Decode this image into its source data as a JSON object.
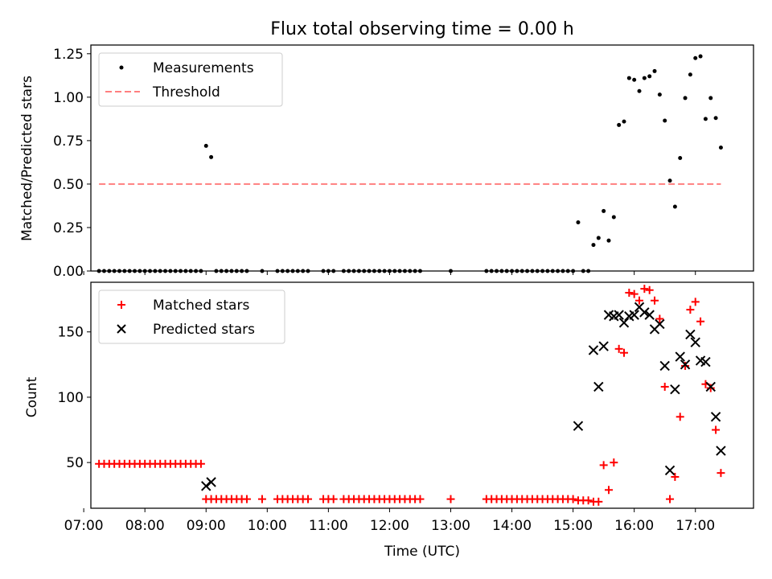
{
  "chart_data": [
    {
      "type": "scatter",
      "title": "Flux total observing time = 0.00 h",
      "xlabel": "",
      "ylabel": "Matched/Predicted stars",
      "xlim": [
        "07:07",
        "17:57"
      ],
      "ylim": [
        0,
        1.3
      ],
      "yticks": [
        0.0,
        0.25,
        0.5,
        0.75,
        1.0,
        1.25
      ],
      "ytick_labels": [
        "0.00",
        "0.25",
        "0.50",
        "0.75",
        "1.00",
        "1.25"
      ],
      "legend_position": "top-left",
      "grid": false,
      "series": [
        {
          "name": "Measurements",
          "marker": "dot",
          "color": "#000000",
          "points": [
            [
              "07:15",
              0
            ],
            [
              "07:20",
              0
            ],
            [
              "07:25",
              0
            ],
            [
              "07:30",
              0
            ],
            [
              "07:35",
              0
            ],
            [
              "07:40",
              0
            ],
            [
              "07:45",
              0
            ],
            [
              "07:50",
              0
            ],
            [
              "07:55",
              0
            ],
            [
              "08:00",
              0
            ],
            [
              "08:05",
              0
            ],
            [
              "08:10",
              0
            ],
            [
              "08:15",
              0
            ],
            [
              "08:20",
              0
            ],
            [
              "08:25",
              0
            ],
            [
              "08:30",
              0
            ],
            [
              "08:35",
              0
            ],
            [
              "08:40",
              0
            ],
            [
              "08:45",
              0
            ],
            [
              "08:50",
              0
            ],
            [
              "08:55",
              0
            ],
            [
              "09:00",
              0.72
            ],
            [
              "09:05",
              0.655
            ],
            [
              "09:10",
              0
            ],
            [
              "09:15",
              0
            ],
            [
              "09:20",
              0
            ],
            [
              "09:25",
              0
            ],
            [
              "09:30",
              0
            ],
            [
              "09:35",
              0
            ],
            [
              "09:40",
              0
            ],
            [
              "09:55",
              0
            ],
            [
              "10:10",
              0
            ],
            [
              "10:15",
              0
            ],
            [
              "10:20",
              0
            ],
            [
              "10:25",
              0
            ],
            [
              "10:30",
              0
            ],
            [
              "10:35",
              0
            ],
            [
              "10:40",
              0
            ],
            [
              "10:55",
              0
            ],
            [
              "11:00",
              0
            ],
            [
              "11:05",
              0
            ],
            [
              "11:15",
              0
            ],
            [
              "11:20",
              0
            ],
            [
              "11:25",
              0
            ],
            [
              "11:30",
              0
            ],
            [
              "11:35",
              0
            ],
            [
              "11:40",
              0
            ],
            [
              "11:45",
              0
            ],
            [
              "11:50",
              0
            ],
            [
              "11:55",
              0
            ],
            [
              "12:00",
              0
            ],
            [
              "12:05",
              0
            ],
            [
              "12:10",
              0
            ],
            [
              "12:15",
              0
            ],
            [
              "12:20",
              0
            ],
            [
              "12:25",
              0
            ],
            [
              "12:30",
              0
            ],
            [
              "13:00",
              0
            ],
            [
              "13:35",
              0
            ],
            [
              "13:40",
              0
            ],
            [
              "13:45",
              0
            ],
            [
              "13:50",
              0
            ],
            [
              "13:55",
              0
            ],
            [
              "14:00",
              0
            ],
            [
              "14:05",
              0
            ],
            [
              "14:10",
              0
            ],
            [
              "14:15",
              0
            ],
            [
              "14:20",
              0
            ],
            [
              "14:25",
              0
            ],
            [
              "14:30",
              0
            ],
            [
              "14:35",
              0
            ],
            [
              "14:40",
              0
            ],
            [
              "14:45",
              0
            ],
            [
              "14:50",
              0
            ],
            [
              "14:55",
              0
            ],
            [
              "15:00",
              0
            ],
            [
              "15:05",
              0.28
            ],
            [
              "15:10",
              0
            ],
            [
              "15:15",
              0
            ],
            [
              "15:20",
              0.15
            ],
            [
              "15:25",
              0.19
            ],
            [
              "15:30",
              0.345
            ],
            [
              "15:35",
              0.175
            ],
            [
              "15:40",
              0.31
            ],
            [
              "15:45",
              0.84
            ],
            [
              "15:50",
              0.86
            ],
            [
              "15:55",
              1.11
            ],
            [
              "16:00",
              1.1
            ],
            [
              "16:05",
              1.035
            ],
            [
              "16:10",
              1.11
            ],
            [
              "16:15",
              1.12
            ],
            [
              "16:20",
              1.15
            ],
            [
              "16:25",
              1.015
            ],
            [
              "16:30",
              0.865
            ],
            [
              "16:35",
              0.52
            ],
            [
              "16:40",
              0.37
            ],
            [
              "16:45",
              0.65
            ],
            [
              "16:50",
              0.995
            ],
            [
              "16:55",
              1.13
            ],
            [
              "17:00",
              1.225
            ],
            [
              "17:05",
              1.235
            ],
            [
              "17:10",
              0.875
            ],
            [
              "17:15",
              0.995
            ],
            [
              "17:20",
              0.88
            ],
            [
              "17:25",
              0.71
            ]
          ]
        },
        {
          "name": "Threshold",
          "type": "line",
          "style": "dashed",
          "color": "#ff7f7f",
          "x_range": [
            "07:15",
            "17:25"
          ],
          "value": 0.5
        }
      ]
    },
    {
      "type": "scatter",
      "title": "",
      "xlabel": "Time (UTC)",
      "ylabel": "Count",
      "xlim": [
        "07:07",
        "17:57"
      ],
      "ylim": [
        15,
        188
      ],
      "xticks": [
        "07:00",
        "08:00",
        "09:00",
        "10:00",
        "11:00",
        "12:00",
        "13:00",
        "14:00",
        "15:00",
        "16:00",
        "17:00"
      ],
      "yticks": [
        50,
        100,
        150
      ],
      "ytick_labels": [
        "50",
        "100",
        "150"
      ],
      "legend_position": "top-left",
      "grid": false,
      "series": [
        {
          "name": "Matched stars",
          "marker": "plus",
          "color": "#ff0000",
          "points": [
            [
              "07:15",
              49
            ],
            [
              "07:20",
              49
            ],
            [
              "07:25",
              49
            ],
            [
              "07:30",
              49
            ],
            [
              "07:35",
              49
            ],
            [
              "07:40",
              49
            ],
            [
              "07:45",
              49
            ],
            [
              "07:50",
              49
            ],
            [
              "07:55",
              49
            ],
            [
              "08:00",
              49
            ],
            [
              "08:05",
              49
            ],
            [
              "08:10",
              49
            ],
            [
              "08:15",
              49
            ],
            [
              "08:20",
              49
            ],
            [
              "08:25",
              49
            ],
            [
              "08:30",
              49
            ],
            [
              "08:35",
              49
            ],
            [
              "08:40",
              49
            ],
            [
              "08:45",
              49
            ],
            [
              "08:50",
              49
            ],
            [
              "08:55",
              49
            ],
            [
              "09:00",
              22
            ],
            [
              "09:05",
              22
            ],
            [
              "09:10",
              22
            ],
            [
              "09:15",
              22
            ],
            [
              "09:20",
              22
            ],
            [
              "09:25",
              22
            ],
            [
              "09:30",
              22
            ],
            [
              "09:35",
              22
            ],
            [
              "09:40",
              22
            ],
            [
              "09:55",
              22
            ],
            [
              "10:10",
              22
            ],
            [
              "10:15",
              22
            ],
            [
              "10:20",
              22
            ],
            [
              "10:25",
              22
            ],
            [
              "10:30",
              22
            ],
            [
              "10:35",
              22
            ],
            [
              "10:40",
              22
            ],
            [
              "10:55",
              22
            ],
            [
              "11:00",
              22
            ],
            [
              "11:05",
              22
            ],
            [
              "11:15",
              22
            ],
            [
              "11:20",
              22
            ],
            [
              "11:25",
              22
            ],
            [
              "11:30",
              22
            ],
            [
              "11:35",
              22
            ],
            [
              "11:40",
              22
            ],
            [
              "11:45",
              22
            ],
            [
              "11:50",
              22
            ],
            [
              "11:55",
              22
            ],
            [
              "12:00",
              22
            ],
            [
              "12:05",
              22
            ],
            [
              "12:10",
              22
            ],
            [
              "12:15",
              22
            ],
            [
              "12:20",
              22
            ],
            [
              "12:25",
              22
            ],
            [
              "12:30",
              22
            ],
            [
              "13:00",
              22
            ],
            [
              "13:35",
              22
            ],
            [
              "13:40",
              22
            ],
            [
              "13:45",
              22
            ],
            [
              "13:50",
              22
            ],
            [
              "13:55",
              22
            ],
            [
              "14:00",
              22
            ],
            [
              "14:05",
              22
            ],
            [
              "14:10",
              22
            ],
            [
              "14:15",
              22
            ],
            [
              "14:20",
              22
            ],
            [
              "14:25",
              22
            ],
            [
              "14:30",
              22
            ],
            [
              "14:35",
              22
            ],
            [
              "14:40",
              22
            ],
            [
              "14:45",
              22
            ],
            [
              "14:50",
              22
            ],
            [
              "14:55",
              22
            ],
            [
              "15:00",
              22
            ],
            [
              "15:05",
              21
            ],
            [
              "15:10",
              21
            ],
            [
              "15:15",
              21
            ],
            [
              "15:20",
              20
            ],
            [
              "15:25",
              20
            ],
            [
              "15:30",
              48
            ],
            [
              "15:35",
              29
            ],
            [
              "15:40",
              50
            ],
            [
              "15:45",
              137
            ],
            [
              "15:50",
              134
            ],
            [
              "15:55",
              180
            ],
            [
              "16:00",
              179
            ],
            [
              "16:05",
              174
            ],
            [
              "16:10",
              183
            ],
            [
              "16:15",
              182
            ],
            [
              "16:20",
              174
            ],
            [
              "16:25",
              160
            ],
            [
              "16:30",
              108
            ],
            [
              "16:35",
              22
            ],
            [
              "16:40",
              39
            ],
            [
              "16:45",
              85
            ],
            [
              "16:50",
              124
            ],
            [
              "16:55",
              167
            ],
            [
              "17:00",
              173
            ],
            [
              "17:05",
              158
            ],
            [
              "17:10",
              110
            ],
            [
              "17:15",
              107
            ],
            [
              "17:20",
              75
            ],
            [
              "17:25",
              42
            ]
          ]
        },
        {
          "name": "Predicted stars",
          "marker": "x",
          "color": "#000000",
          "points": [
            [
              "09:00",
              32
            ],
            [
              "09:05",
              35
            ],
            [
              "15:05",
              78
            ],
            [
              "15:20",
              136
            ],
            [
              "15:25",
              108
            ],
            [
              "15:30",
              139
            ],
            [
              "15:35",
              163
            ],
            [
              "15:40",
              162
            ],
            [
              "15:45",
              163
            ],
            [
              "15:50",
              157
            ],
            [
              "15:55",
              162
            ],
            [
              "16:00",
              163
            ],
            [
              "16:05",
              169
            ],
            [
              "16:10",
              165
            ],
            [
              "16:15",
              163
            ],
            [
              "16:20",
              152
            ],
            [
              "16:25",
              156
            ],
            [
              "16:30",
              124
            ],
            [
              "16:35",
              44
            ],
            [
              "16:40",
              106
            ],
            [
              "16:45",
              131
            ],
            [
              "16:50",
              125
            ],
            [
              "16:55",
              148
            ],
            [
              "17:00",
              142
            ],
            [
              "17:05",
              128
            ],
            [
              "17:10",
              127
            ],
            [
              "17:15",
              108
            ],
            [
              "17:20",
              85
            ],
            [
              "17:25",
              59
            ]
          ]
        }
      ]
    }
  ]
}
